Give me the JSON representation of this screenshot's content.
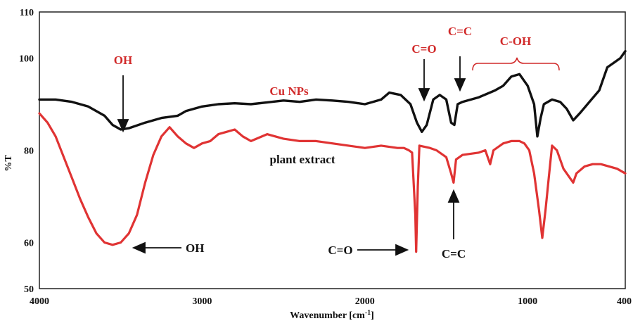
{
  "chart_data": {
    "type": "line",
    "xlabel": "Wavenumber [cm",
    "xlabel_sup": "-1",
    "xlabel_tail": "]",
    "ylabel": "%T",
    "xlim": [
      4000,
      400
    ],
    "ylim": [
      50,
      110
    ],
    "x_ticks": [
      4000,
      3000,
      2000,
      1000,
      400
    ],
    "y_ticks": [
      50,
      60,
      80,
      100,
      110
    ],
    "grid": false,
    "colors": {
      "cu_nps": "#111111",
      "plant_extract": "#e03333",
      "annotation_red": "#d12a2a"
    },
    "series": [
      {
        "name": "Cu NPs",
        "color": "#111111",
        "points": [
          [
            4000,
            91
          ],
          [
            3900,
            91
          ],
          [
            3800,
            90.5
          ],
          [
            3700,
            89.5
          ],
          [
            3600,
            87.5
          ],
          [
            3550,
            85.5
          ],
          [
            3500,
            84.5
          ],
          [
            3450,
            84.8
          ],
          [
            3350,
            86
          ],
          [
            3250,
            87
          ],
          [
            3150,
            87.5
          ],
          [
            3100,
            88.5
          ],
          [
            3000,
            89.5
          ],
          [
            2900,
            90
          ],
          [
            2800,
            90.2
          ],
          [
            2700,
            90
          ],
          [
            2600,
            90.4
          ],
          [
            2500,
            90.8
          ],
          [
            2400,
            90.5
          ],
          [
            2300,
            91
          ],
          [
            2200,
            90.8
          ],
          [
            2100,
            90.5
          ],
          [
            2000,
            90
          ],
          [
            1950,
            90.5
          ],
          [
            1900,
            91
          ],
          [
            1850,
            92.5
          ],
          [
            1780,
            92
          ],
          [
            1720,
            90
          ],
          [
            1680,
            86
          ],
          [
            1650,
            84
          ],
          [
            1620,
            85.5
          ],
          [
            1580,
            91
          ],
          [
            1540,
            92
          ],
          [
            1500,
            91
          ],
          [
            1470,
            86
          ],
          [
            1450,
            85.5
          ],
          [
            1430,
            90
          ],
          [
            1400,
            90.5
          ],
          [
            1300,
            91.5
          ],
          [
            1200,
            93
          ],
          [
            1150,
            94
          ],
          [
            1100,
            96
          ],
          [
            1050,
            96.5
          ],
          [
            1000,
            94
          ],
          [
            960,
            90
          ],
          [
            940,
            83
          ],
          [
            920,
            87
          ],
          [
            900,
            90
          ],
          [
            850,
            91
          ],
          [
            800,
            90.5
          ],
          [
            760,
            89
          ],
          [
            720,
            86.5
          ],
          [
            680,
            88
          ],
          [
            620,
            90.5
          ],
          [
            560,
            93
          ],
          [
            510,
            98
          ],
          [
            470,
            99
          ],
          [
            430,
            100
          ],
          [
            400,
            101.5
          ]
        ]
      },
      {
        "name": "plant extract",
        "color": "#e03333",
        "points": [
          [
            4000,
            88
          ],
          [
            3950,
            86
          ],
          [
            3900,
            83
          ],
          [
            3850,
            78.5
          ],
          [
            3800,
            74
          ],
          [
            3750,
            69.5
          ],
          [
            3700,
            65.5
          ],
          [
            3650,
            62
          ],
          [
            3600,
            60
          ],
          [
            3550,
            59.5
          ],
          [
            3500,
            60
          ],
          [
            3450,
            62
          ],
          [
            3400,
            66
          ],
          [
            3350,
            73
          ],
          [
            3300,
            79
          ],
          [
            3250,
            83
          ],
          [
            3200,
            85
          ],
          [
            3150,
            83
          ],
          [
            3100,
            81.5
          ],
          [
            3050,
            80.5
          ],
          [
            3000,
            81.5
          ],
          [
            2950,
            82
          ],
          [
            2900,
            83.5
          ],
          [
            2850,
            84
          ],
          [
            2800,
            84.5
          ],
          [
            2750,
            83
          ],
          [
            2700,
            82
          ],
          [
            2600,
            83.5
          ],
          [
            2500,
            82.5
          ],
          [
            2400,
            82
          ],
          [
            2300,
            82
          ],
          [
            2200,
            81.5
          ],
          [
            2100,
            81
          ],
          [
            2000,
            80.5
          ],
          [
            1900,
            81
          ],
          [
            1800,
            80.5
          ],
          [
            1760,
            80.5
          ],
          [
            1730,
            80
          ],
          [
            1710,
            79.5
          ],
          [
            1690,
            66
          ],
          [
            1685,
            58
          ],
          [
            1675,
            72
          ],
          [
            1665,
            81
          ],
          [
            1600,
            80.5
          ],
          [
            1560,
            80
          ],
          [
            1500,
            78.5
          ],
          [
            1470,
            75
          ],
          [
            1455,
            73
          ],
          [
            1440,
            78
          ],
          [
            1400,
            79
          ],
          [
            1300,
            79.5
          ],
          [
            1260,
            80
          ],
          [
            1230,
            77
          ],
          [
            1210,
            80
          ],
          [
            1150,
            81.5
          ],
          [
            1100,
            82
          ],
          [
            1050,
            82
          ],
          [
            1020,
            81.5
          ],
          [
            990,
            80
          ],
          [
            960,
            75
          ],
          [
            930,
            67
          ],
          [
            910,
            61
          ],
          [
            890,
            67
          ],
          [
            870,
            74
          ],
          [
            850,
            81
          ],
          [
            820,
            80
          ],
          [
            780,
            76
          ],
          [
            740,
            74
          ],
          [
            720,
            73
          ],
          [
            700,
            75
          ],
          [
            650,
            76.5
          ],
          [
            600,
            77
          ],
          [
            550,
            77
          ],
          [
            500,
            76.5
          ],
          [
            450,
            76
          ],
          [
            400,
            75
          ]
        ]
      }
    ],
    "labels": {
      "series_cu": "Cu NPs",
      "series_plant": "plant extract",
      "oh_top": "OH",
      "oh_bottom": "OH",
      "co_top": "C=O",
      "cc_top": "C=C",
      "coh_top": "C-OH",
      "co_bottom": "C=O",
      "cc_bottom": "C=C"
    }
  }
}
